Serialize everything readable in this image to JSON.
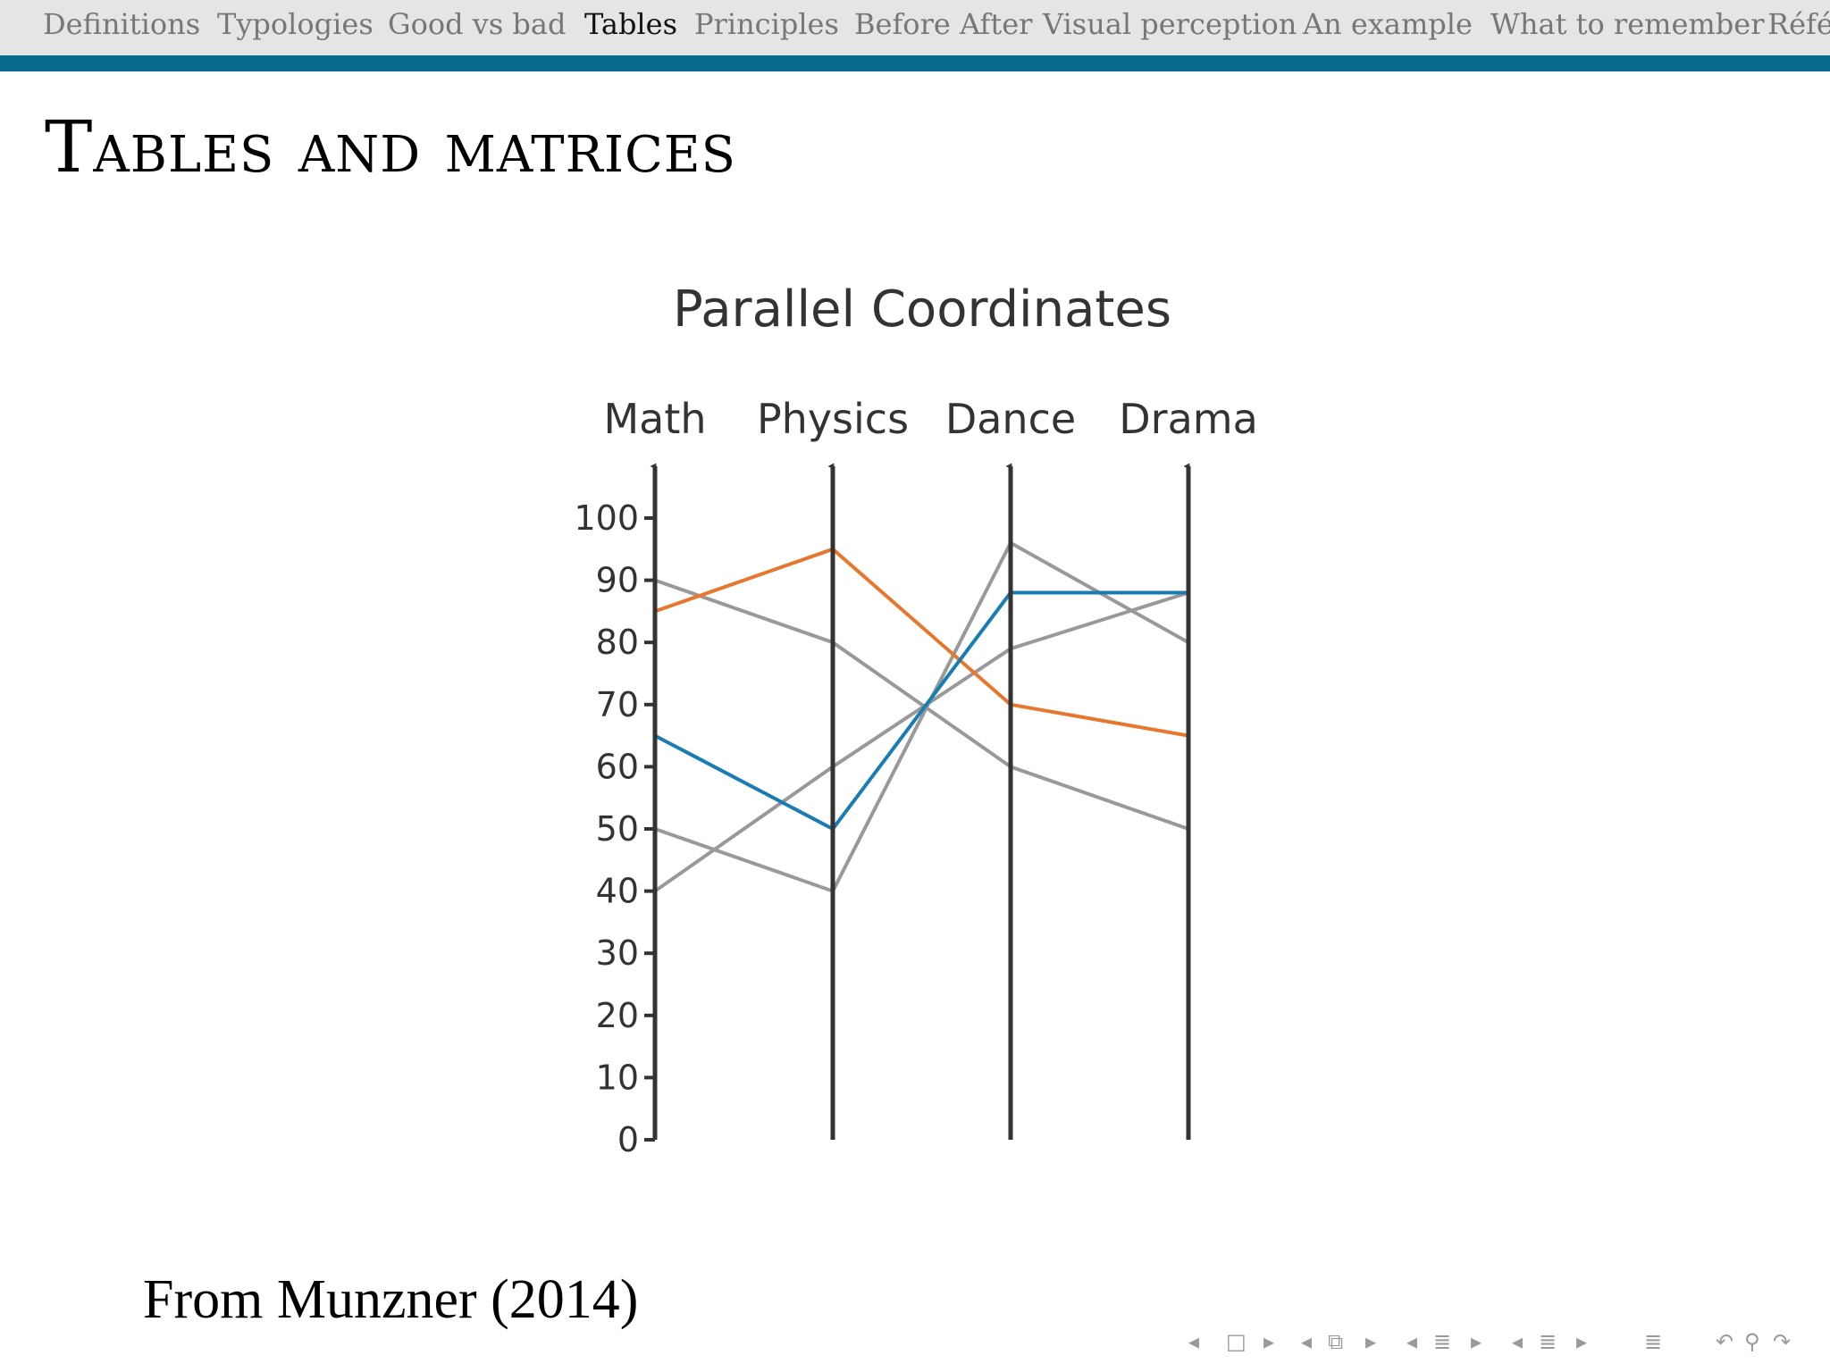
{
  "nav": {
    "items": [
      "Definitions",
      "Typologies",
      "Good vs bad",
      "Tables",
      "Principles",
      "Before After",
      "Visual perception",
      "An example",
      "What to remember",
      "Référ"
    ],
    "active_index": 3,
    "accent_color": "#0b6b8f"
  },
  "frame": {
    "title": "Tables and matrices"
  },
  "chart_data": {
    "type": "parallel_coordinates",
    "title": "Parallel Coordinates",
    "axes": [
      "Math",
      "Physics",
      "Dance",
      "Drama"
    ],
    "ylim": [
      0,
      100
    ],
    "yticks": [
      0,
      10,
      20,
      30,
      40,
      50,
      60,
      70,
      80,
      90,
      100
    ],
    "grid": false,
    "series": [
      {
        "values": [
          85,
          95,
          70,
          65
        ],
        "color": "#e8772e"
      },
      {
        "values": [
          65,
          50,
          88,
          88
        ],
        "color": "#1a7cb4"
      },
      {
        "values": [
          90,
          80,
          60,
          50
        ],
        "color": "#999999"
      },
      {
        "values": [
          50,
          40,
          96,
          80
        ],
        "color": "#999999"
      },
      {
        "values": [
          40,
          60,
          79,
          88
        ],
        "color": "#999999"
      }
    ]
  },
  "caption": "From Munzner (2014)",
  "controls": {
    "icons": [
      "arrow-left-icon",
      "frame-icon",
      "arrow-right-icon",
      "arrow-left-icon",
      "subsection-icon",
      "arrow-right-icon",
      "arrow-left-icon",
      "section-icon",
      "arrow-right-icon",
      "arrow-left-icon",
      "toc-icon",
      "arrow-right-icon",
      "menu-icon",
      "back-icon",
      "search-icon",
      "forward-icon"
    ],
    "glyphs": [
      "◂",
      "□",
      "▸",
      "◂",
      "⧉",
      "▸",
      "◂",
      "≣",
      "▸",
      "◂",
      "≣",
      "▸",
      "≣",
      "↶",
      "⚲",
      "↷"
    ]
  }
}
